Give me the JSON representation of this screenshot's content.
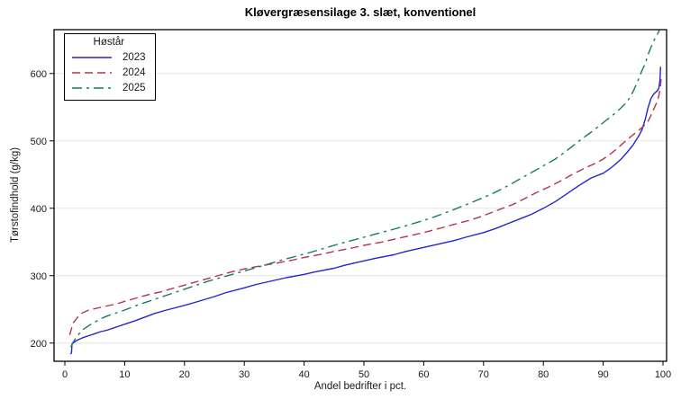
{
  "chart_data": {
    "type": "line",
    "title": "Kløvergræsensilage 3. slæt, konventionel",
    "xlabel": "Andel bedrifter i pct.",
    "ylabel": "Tørstofindhold (g/kg)",
    "xlim": [
      0,
      100
    ],
    "ylim": [
      173,
      665
    ],
    "xticks": [
      0,
      10,
      20,
      30,
      40,
      50,
      60,
      70,
      80,
      90,
      100
    ],
    "yticks": [
      200,
      300,
      400,
      500,
      600
    ],
    "grid": "horizontal-only",
    "grid_color": "#e4e4e4",
    "frame_color": "#000000",
    "legend": {
      "title": "Høstår",
      "position": "top-left"
    },
    "series": [
      {
        "name": "2023",
        "color": "#2626cc",
        "line_style": "solid",
        "points": [
          [
            0.9,
            184
          ],
          [
            1.1,
            185
          ],
          [
            1.2,
            199
          ],
          [
            2,
            204
          ],
          [
            3,
            208
          ],
          [
            4,
            211
          ],
          [
            5,
            214
          ],
          [
            6,
            217
          ],
          [
            7,
            219
          ],
          [
            8,
            222
          ],
          [
            9,
            225
          ],
          [
            10,
            228
          ],
          [
            12,
            234
          ],
          [
            15,
            244
          ],
          [
            17,
            249
          ],
          [
            20,
            256
          ],
          [
            22,
            261
          ],
          [
            25,
            269
          ],
          [
            27,
            275
          ],
          [
            30,
            282
          ],
          [
            32,
            287
          ],
          [
            35,
            293
          ],
          [
            37,
            297
          ],
          [
            40,
            302
          ],
          [
            42,
            306
          ],
          [
            45,
            311
          ],
          [
            47,
            316
          ],
          [
            50,
            322
          ],
          [
            52,
            326
          ],
          [
            55,
            331
          ],
          [
            57,
            336
          ],
          [
            60,
            342
          ],
          [
            62,
            346
          ],
          [
            65,
            352
          ],
          [
            67,
            357
          ],
          [
            70,
            364
          ],
          [
            72,
            370
          ],
          [
            74,
            377
          ],
          [
            76,
            384
          ],
          [
            78,
            391
          ],
          [
            80,
            400
          ],
          [
            82,
            410
          ],
          [
            84,
            422
          ],
          [
            86,
            434
          ],
          [
            88,
            445
          ],
          [
            90,
            452
          ],
          [
            91,
            458
          ],
          [
            92,
            465
          ],
          [
            93,
            473
          ],
          [
            94,
            483
          ],
          [
            95,
            494
          ],
          [
            96,
            508
          ],
          [
            96.5,
            517
          ],
          [
            97,
            531
          ],
          [
            97.5,
            549
          ],
          [
            98,
            563
          ],
          [
            98.5,
            570
          ],
          [
            99,
            574
          ],
          [
            99.3,
            578
          ],
          [
            99.5,
            591
          ],
          [
            99.6,
            610
          ]
        ]
      },
      {
        "name": "2024",
        "color": "#b23549",
        "line_style": "dashed",
        "points": [
          [
            0.8,
            212
          ],
          [
            1,
            218
          ],
          [
            1.4,
            230
          ],
          [
            2,
            237
          ],
          [
            2.5,
            242
          ],
          [
            3,
            245
          ],
          [
            4,
            249
          ],
          [
            5,
            251
          ],
          [
            6,
            253
          ],
          [
            7,
            255
          ],
          [
            8,
            257
          ],
          [
            9,
            259
          ],
          [
            10,
            262
          ],
          [
            12,
            267
          ],
          [
            14,
            272
          ],
          [
            16,
            276
          ],
          [
            18,
            281
          ],
          [
            20,
            286
          ],
          [
            22,
            291
          ],
          [
            24,
            296
          ],
          [
            26,
            301
          ],
          [
            28,
            306
          ],
          [
            30,
            310
          ],
          [
            33,
            315
          ],
          [
            35,
            318
          ],
          [
            38,
            323
          ],
          [
            40,
            327
          ],
          [
            43,
            332
          ],
          [
            45,
            336
          ],
          [
            48,
            341
          ],
          [
            50,
            345
          ],
          [
            53,
            350
          ],
          [
            55,
            354
          ],
          [
            58,
            360
          ],
          [
            60,
            364
          ],
          [
            63,
            371
          ],
          [
            65,
            376
          ],
          [
            68,
            383
          ],
          [
            70,
            389
          ],
          [
            72,
            396
          ],
          [
            75,
            406
          ],
          [
            77,
            415
          ],
          [
            79,
            424
          ],
          [
            81,
            432
          ],
          [
            83,
            441
          ],
          [
            85,
            451
          ],
          [
            87,
            460
          ],
          [
            89,
            468
          ],
          [
            90,
            473
          ],
          [
            91,
            479
          ],
          [
            92,
            486
          ],
          [
            93,
            494
          ],
          [
            94,
            502
          ],
          [
            95,
            509
          ],
          [
            96,
            516
          ],
          [
            97,
            524
          ],
          [
            97.5,
            529
          ],
          [
            98,
            538
          ],
          [
            98.5,
            548
          ],
          [
            99,
            558
          ],
          [
            99.3,
            567
          ],
          [
            99.5,
            576
          ],
          [
            99.7,
            592
          ]
        ]
      },
      {
        "name": "2025",
        "color": "#17796c",
        "line_style": "dash-dot",
        "points": [
          [
            1,
            194
          ],
          [
            1.3,
            200
          ],
          [
            1.8,
            207
          ],
          [
            2.3,
            213
          ],
          [
            3,
            220
          ],
          [
            4,
            226
          ],
          [
            5,
            231
          ],
          [
            6,
            236
          ],
          [
            7,
            240
          ],
          [
            8,
            243
          ],
          [
            9,
            246
          ],
          [
            10,
            249
          ],
          [
            12,
            256
          ],
          [
            14,
            262
          ],
          [
            16,
            268
          ],
          [
            18,
            274
          ],
          [
            20,
            280
          ],
          [
            22,
            286
          ],
          [
            24,
            292
          ],
          [
            26,
            297
          ],
          [
            28,
            302
          ],
          [
            30,
            307
          ],
          [
            32,
            312
          ],
          [
            35,
            320
          ],
          [
            37,
            325
          ],
          [
            40,
            332
          ],
          [
            42,
            337
          ],
          [
            45,
            345
          ],
          [
            47,
            350
          ],
          [
            50,
            357
          ],
          [
            52,
            362
          ],
          [
            55,
            369
          ],
          [
            57,
            374
          ],
          [
            60,
            382
          ],
          [
            62,
            388
          ],
          [
            65,
            398
          ],
          [
            67,
            405
          ],
          [
            70,
            416
          ],
          [
            72,
            424
          ],
          [
            74,
            433
          ],
          [
            76,
            443
          ],
          [
            78,
            453
          ],
          [
            80,
            463
          ],
          [
            82,
            473
          ],
          [
            84,
            486
          ],
          [
            86,
            500
          ],
          [
            88,
            513
          ],
          [
            89,
            520
          ],
          [
            90,
            527
          ],
          [
            91,
            534
          ],
          [
            92,
            541
          ],
          [
            93,
            549
          ],
          [
            94,
            558
          ],
          [
            95,
            573
          ],
          [
            95.5,
            583
          ],
          [
            96,
            593
          ],
          [
            96.5,
            605
          ],
          [
            97,
            614
          ],
          [
            97.5,
            628
          ],
          [
            98,
            639
          ],
          [
            98.5,
            649
          ],
          [
            99,
            657
          ],
          [
            99.4,
            664
          ]
        ]
      }
    ]
  }
}
